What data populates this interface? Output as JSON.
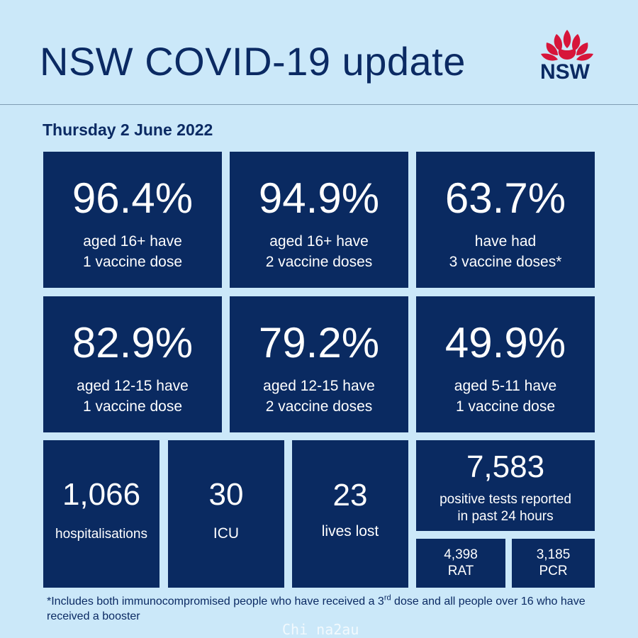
{
  "header": {
    "title": "NSW COVID-19 update",
    "logo_text": "NSW",
    "logo_icon": "waratah-flower-icon"
  },
  "date": "Thursday 2 June 2022",
  "colors": {
    "background": "#cbe8f9",
    "tile": "#0a2a61",
    "text_dark": "#0b2a63",
    "logo_red": "#d7153a"
  },
  "vaccination_tiles": [
    {
      "value": "96.4%",
      "line1": "aged 16+ have",
      "line2": "1 vaccine dose"
    },
    {
      "value": "94.9%",
      "line1": "aged 16+ have",
      "line2": "2 vaccine doses"
    },
    {
      "value": "63.7%",
      "line1": "have had",
      "line2": "3 vaccine doses*"
    },
    {
      "value": "82.9%",
      "line1": "aged 12-15 have",
      "line2": "1 vaccine dose"
    },
    {
      "value": "79.2%",
      "line1": "aged 12-15 have",
      "line2": "2 vaccine doses"
    },
    {
      "value": "49.9%",
      "line1": "aged 5-11 have",
      "line2": "1 vaccine dose"
    }
  ],
  "stats": {
    "hospitalisations": {
      "value": "1,066",
      "label": "hospitalisations"
    },
    "icu": {
      "value": "30",
      "label": "ICU"
    },
    "lives_lost": {
      "value": "23",
      "label": "lives lost"
    },
    "positive_tests": {
      "value": "7,583",
      "line1": "positive tests reported",
      "line2": "in past 24 hours"
    },
    "rat": {
      "value": "4,398",
      "label": "RAT"
    },
    "pcr": {
      "value": "3,185",
      "label": "PCR"
    }
  },
  "footnote": {
    "part1": "*Includes both immunocompromised people who have received a 3",
    "sup": "rd",
    "part2": " dose and all people over 16 who have received a booster"
  },
  "watermark": "Chi na2au"
}
